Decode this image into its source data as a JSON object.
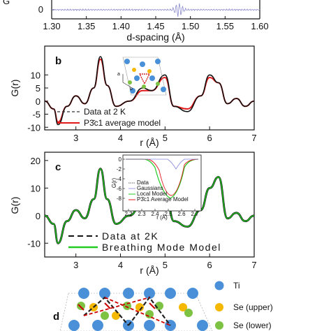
{
  "panel_top": {
    "xticks": [
      "1.30",
      "1.35",
      "1.40",
      "1.45",
      "1.50",
      "1.55",
      "1.60"
    ],
    "yticks": [
      "0"
    ],
    "xlabel": "d-spacing (Å)",
    "x_range": [
      1.3,
      1.6
    ]
  },
  "panel_b": {
    "label": "b",
    "ylabel": "G(r)",
    "xlabel": "r (Å)",
    "xticks": [
      "3",
      "4",
      "5",
      "6",
      "7"
    ],
    "yticks": [
      "10",
      "5",
      "0",
      "-5",
      "-10"
    ],
    "legend": [
      {
        "text": "Data at 2 K",
        "color": "#333333",
        "style": "dashed"
      },
      {
        "text": "P3̄c1 average model",
        "color": "#e31a1c",
        "style": "solid"
      }
    ],
    "inset_axes": [
      "a",
      "b"
    ]
  },
  "panel_c": {
    "label": "c",
    "ylabel": "G(r)",
    "xlabel": "r (Å)",
    "xticks": [
      "3",
      "4",
      "5",
      "6",
      "7"
    ],
    "yticks": [
      "20",
      "10",
      "0",
      "-10"
    ],
    "legend": [
      {
        "text": "Data at 2K",
        "color": "#000000",
        "style": "dashed"
      },
      {
        "text": "Breathing Mode Model",
        "color": "#22cc22",
        "style": "solid"
      }
    ],
    "inset": {
      "ylabel": "G(r)",
      "xlabel": "r (Å)",
      "xticks": [
        "2.2",
        "2.3",
        "2.4",
        "2.5",
        "2.6",
        "2.7"
      ],
      "yticks": [
        "0",
        "-2",
        "-4",
        "-6",
        "-8"
      ],
      "legend": [
        "Data",
        "Gaussians",
        "Local Model",
        "P3̄c1 Average Model"
      ]
    }
  },
  "panel_d": {
    "label": "d",
    "legend": [
      {
        "text": "Ti",
        "color": "#4a90d9"
      },
      {
        "text": "Se (upper)",
        "color": "#f5b800"
      },
      {
        "text": "Se (lower)",
        "color": "#7dc242"
      }
    ]
  },
  "chart_data": [
    {
      "type": "line",
      "panel": "top",
      "xlabel": "d-spacing (Å)",
      "xlim": [
        1.3,
        1.6
      ],
      "x": [
        1.3,
        1.35,
        1.4,
        1.45,
        1.47,
        1.48,
        1.49,
        1.5,
        1.52,
        1.55,
        1.6
      ],
      "series": [
        {
          "values": [
            0.0,
            0.0,
            0.0,
            0.1,
            -0.4,
            0.5,
            -0.5,
            0.3,
            0.05,
            0.0,
            0.0
          ]
        }
      ]
    },
    {
      "type": "line",
      "panel": "b",
      "xlabel": "r (Å)",
      "ylabel": "G(r)",
      "xlim": [
        2.3,
        7.0
      ],
      "ylim": [
        -11,
        21
      ],
      "x": [
        2.3,
        2.5,
        2.6,
        2.8,
        3.0,
        3.2,
        3.4,
        3.55,
        3.7,
        3.9,
        4.2,
        4.5,
        4.7,
        5.0,
        5.2,
        5.5,
        5.8,
        6.0,
        6.2,
        6.4,
        6.6,
        6.8,
        7.0
      ],
      "series": [
        {
          "name": "Data at 2 K",
          "values": [
            0,
            -3,
            -9,
            -2,
            2,
            -1,
            5,
            17,
            6,
            -2,
            0,
            5,
            4,
            10,
            -2,
            -4,
            2,
            10,
            7,
            -1,
            1,
            -2,
            0
          ]
        },
        {
          "name": "P3̄c1 average model",
          "values": [
            0,
            -3,
            -8,
            -2,
            2,
            -1,
            5,
            16,
            6,
            -2,
            0,
            4,
            4,
            9,
            -2,
            -3,
            2,
            9,
            7,
            -1,
            1,
            -2,
            0
          ]
        }
      ]
    },
    {
      "type": "line",
      "panel": "c",
      "xlabel": "r (Å)",
      "ylabel": "G(r)",
      "xlim": [
        2.3,
        7.0
      ],
      "ylim": [
        -15,
        23
      ],
      "x": [
        2.3,
        2.5,
        2.6,
        2.8,
        3.0,
        3.2,
        3.4,
        3.55,
        3.7,
        3.9,
        4.2,
        4.5,
        4.7,
        5.0,
        5.2,
        5.5,
        5.8,
        6.0,
        6.2,
        6.4,
        6.6,
        6.8,
        7.0
      ],
      "series": [
        {
          "name": "Data at 2K",
          "values": [
            0,
            -3,
            -10,
            -2,
            2,
            -1,
            6,
            17,
            6,
            -3,
            0,
            5,
            4,
            10,
            -2,
            -4,
            2,
            10,
            14,
            -1,
            1,
            -2,
            0
          ]
        },
        {
          "name": "Breathing Mode Model",
          "values": [
            0,
            -3,
            -10,
            -2,
            2,
            -1,
            6,
            17,
            6,
            -3,
            0,
            5,
            4,
            10,
            -2,
            -4,
            2,
            10,
            14,
            -1,
            1,
            -2,
            0
          ]
        }
      ]
    }
  ]
}
